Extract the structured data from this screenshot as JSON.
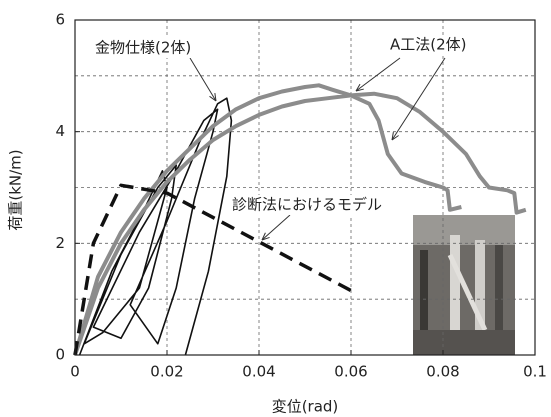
{
  "chart_data": {
    "type": "line",
    "x_label": "変位(rad)",
    "y_label": "荷重(kN/m)",
    "xlim": [
      0,
      0.1
    ],
    "ylim": [
      0,
      6
    ],
    "xticks": [
      0,
      0.02,
      0.04,
      0.06,
      0.08,
      0.1
    ],
    "yticks": [
      0,
      2,
      4,
      6
    ],
    "xgrid": [
      0.02,
      0.04,
      0.06,
      0.08
    ],
    "ygrid": [
      1,
      2,
      3,
      4,
      5
    ],
    "grid": true,
    "series": [
      {
        "name": "金物仕様(2体)",
        "color": "#111111",
        "width": 1.6,
        "dash": false,
        "x": [
          0.001,
          0.008,
          0.015,
          0.019,
          0.02,
          0.014,
          0.006,
          0.002,
          0.01,
          0.018,
          0.022,
          0.021,
          0.016,
          0.01,
          0.004,
          0.014,
          0.022,
          0.028,
          0.031,
          0.03,
          0.026,
          0.022,
          0.018,
          0.012,
          0.02,
          0.027,
          0.031,
          0.033,
          0.034,
          0.033,
          0.029,
          0.024
        ],
        "values": [
          0,
          1.5,
          2.6,
          3.3,
          3.0,
          1.2,
          0.4,
          0.2,
          1.8,
          3.0,
          3.4,
          2.8,
          1.2,
          0.3,
          0.5,
          2.2,
          3.3,
          4.2,
          4.4,
          4.0,
          2.8,
          1.2,
          0.2,
          0.9,
          2.4,
          3.8,
          4.5,
          4.6,
          4.2,
          3.2,
          1.5,
          0
        ]
      },
      {
        "name": "A工法(2体)",
        "color": "#8c8c8c",
        "width": 4,
        "dash": false,
        "x": [
          0,
          0.005,
          0.01,
          0.015,
          0.02,
          0.025,
          0.03,
          0.035,
          0.04,
          0.045,
          0.05,
          0.053,
          0.056,
          0.06,
          0.064,
          0.066,
          0.068,
          0.071,
          0.076,
          0.08,
          0.081,
          0.0815,
          0.084,
          null,
          0,
          0.005,
          0.01,
          0.015,
          0.02,
          0.025,
          0.03,
          0.035,
          0.04,
          0.045,
          0.05,
          0.055,
          0.06,
          0.065,
          0.07,
          0.075,
          0.08,
          0.085,
          0.088,
          0.09,
          0.094,
          0.0955,
          0.096,
          0.098
        ],
        "values": [
          0,
          1.4,
          2.2,
          2.8,
          3.3,
          3.7,
          4.1,
          4.4,
          4.6,
          4.72,
          4.8,
          4.83,
          4.75,
          4.65,
          4.5,
          4.2,
          3.6,
          3.25,
          3.1,
          3.0,
          2.95,
          2.6,
          2.65,
          null,
          0,
          1.2,
          2.0,
          2.6,
          3.1,
          3.5,
          3.85,
          4.1,
          4.3,
          4.45,
          4.55,
          4.6,
          4.65,
          4.68,
          4.6,
          4.35,
          4.0,
          3.6,
          3.2,
          3.0,
          2.95,
          2.9,
          2.55,
          2.6
        ]
      },
      {
        "name": "診断法におけるモデル",
        "color": "#111111",
        "width": 3.5,
        "dash": true,
        "x": [
          0,
          0.004,
          0.01,
          0.02,
          0.061
        ],
        "values": [
          0,
          2.0,
          3.04,
          2.9,
          1.11
        ]
      }
    ]
  }
}
